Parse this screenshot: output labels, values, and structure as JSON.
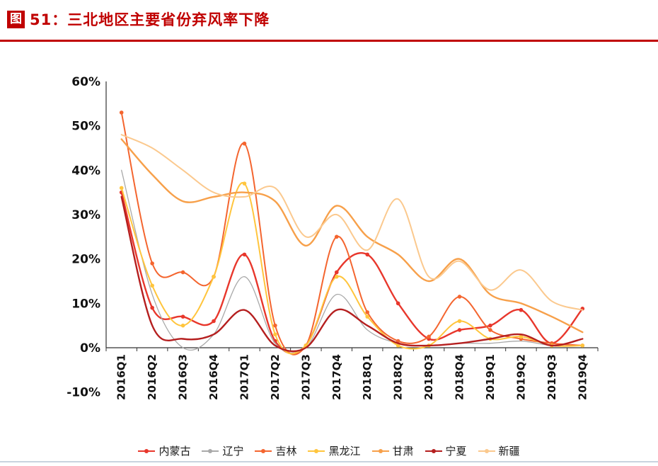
{
  "header": {
    "figure_badge": "图",
    "title": "51：三北地区主要省份弃风率下降",
    "accent_color": "#c00000"
  },
  "chart_data": {
    "type": "line",
    "title": "三北地区主要省份弃风率下降",
    "categories": [
      "2016Q1",
      "2016Q2",
      "2016Q3",
      "2016Q4",
      "2017Q1",
      "2017Q2",
      "2017Q3",
      "2017Q4",
      "2018Q1",
      "2018Q2",
      "2018Q3",
      "2018Q4",
      "2019Q1",
      "2019Q2",
      "2019Q3",
      "2019Q4"
    ],
    "series": [
      {
        "name": "内蒙古",
        "color": "#e8372c",
        "marker": true,
        "width": 2.4,
        "values": [
          35,
          9,
          7,
          6,
          21,
          1.5,
          0.5,
          17,
          21,
          10,
          2,
          4,
          5,
          8.5,
          1,
          8.8
        ]
      },
      {
        "name": "辽宁",
        "color": "#a9a9a9",
        "marker": false,
        "width": 1.3,
        "values": [
          40,
          12,
          0,
          3,
          16,
          1,
          0,
          12,
          4,
          1,
          0.5,
          1,
          1,
          1.5,
          0.5,
          0.5
        ]
      },
      {
        "name": "吉林",
        "color": "#f4652f",
        "marker": true,
        "width": 2.0,
        "values": [
          53,
          19,
          17,
          16,
          46,
          5,
          0.5,
          25,
          8,
          1.5,
          2.5,
          11.5,
          4,
          2,
          1,
          0.5
        ]
      },
      {
        "name": "黑龙江",
        "color": "#ffc53d",
        "marker": true,
        "width": 2.0,
        "values": [
          36,
          14,
          5,
          16,
          37,
          3,
          0.5,
          16,
          7,
          0.5,
          0.5,
          6,
          2,
          2.5,
          0.5,
          0.5
        ]
      },
      {
        "name": "甘肃",
        "color": "#f7a04a",
        "marker": false,
        "width": 2.4,
        "values": [
          47,
          39,
          33,
          34,
          35,
          33,
          23,
          32,
          25,
          21,
          15,
          20,
          12,
          10,
          7,
          3.5
        ]
      },
      {
        "name": "宁夏",
        "color": "#b51f1f",
        "marker": false,
        "width": 2.4,
        "values": [
          34,
          5,
          2,
          3,
          8.5,
          0.5,
          0,
          8.5,
          5,
          1,
          0.5,
          1,
          2,
          3,
          0.5,
          2
        ]
      },
      {
        "name": "新疆",
        "color": "#fbc98e",
        "marker": false,
        "width": 2.0,
        "values": [
          48,
          45,
          40,
          35,
          34,
          36,
          25,
          30,
          22,
          33.5,
          16,
          19.5,
          13,
          17.5,
          10.5,
          8.5
        ]
      }
    ],
    "ylim": [
      -10,
      60
    ],
    "yticks": [
      60,
      50,
      40,
      30,
      20,
      10,
      0,
      -10
    ],
    "ytick_suffix": "%",
    "grid": false,
    "legend_position": "bottom"
  }
}
